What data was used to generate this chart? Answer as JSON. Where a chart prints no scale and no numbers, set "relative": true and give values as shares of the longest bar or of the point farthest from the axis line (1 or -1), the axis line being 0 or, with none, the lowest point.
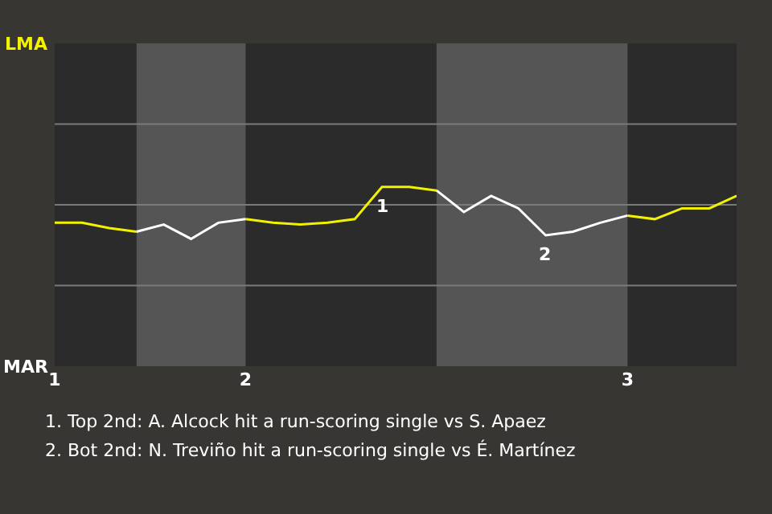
{
  "chart_data": {
    "type": "line",
    "relative": true,
    "categories": [
      "1",
      null,
      null,
      null,
      null,
      null,
      null,
      "2",
      null,
      null,
      null,
      null,
      null,
      null,
      null,
      null,
      null,
      null,
      null,
      null,
      null,
      "3",
      null,
      null,
      null,
      null
    ],
    "series": [
      {
        "color": "#f2f200",
        "values": [
          0.8,
          0.8,
          0.77,
          0.75,
          null,
          null,
          null,
          0.82,
          0.8,
          0.79,
          0.8,
          0.82,
          1.0,
          1.0,
          0.98,
          null,
          null,
          null,
          null,
          null,
          null,
          0.84,
          0.82,
          0.88,
          0.88,
          0.95
        ]
      },
      {
        "color": "#ffffff",
        "values": [
          null,
          null,
          null,
          0.75,
          0.79,
          0.71,
          0.8,
          0.82,
          null,
          null,
          null,
          null,
          null,
          null,
          0.98,
          0.86,
          0.95,
          0.88,
          0.73,
          0.75,
          0.8,
          0.84,
          null,
          null,
          null,
          null
        ]
      }
    ],
    "ref_lines": [
      {
        "axis": "y",
        "value": 0.45,
        "color": "#7a7a7a"
      },
      {
        "axis": "y",
        "value": 0.9,
        "color": "#7a7a7a"
      },
      {
        "axis": "y",
        "value": 1.35,
        "color": "#7a7a7a"
      }
    ],
    "annotations": [
      {
        "text": "1",
        "y": 1.0
      },
      {
        "text": "2",
        "y": 0.73
      },
      "LMA",
      "MAR",
      "1. Top 2nd: A. Alcock hit a run-scoring single vs S. Apaez",
      "2. Bot 2nd: N. Treviño hit a run-scoring single vs É. Martínez"
    ],
    "marker": "none",
    "line_style": "solid"
  }
}
